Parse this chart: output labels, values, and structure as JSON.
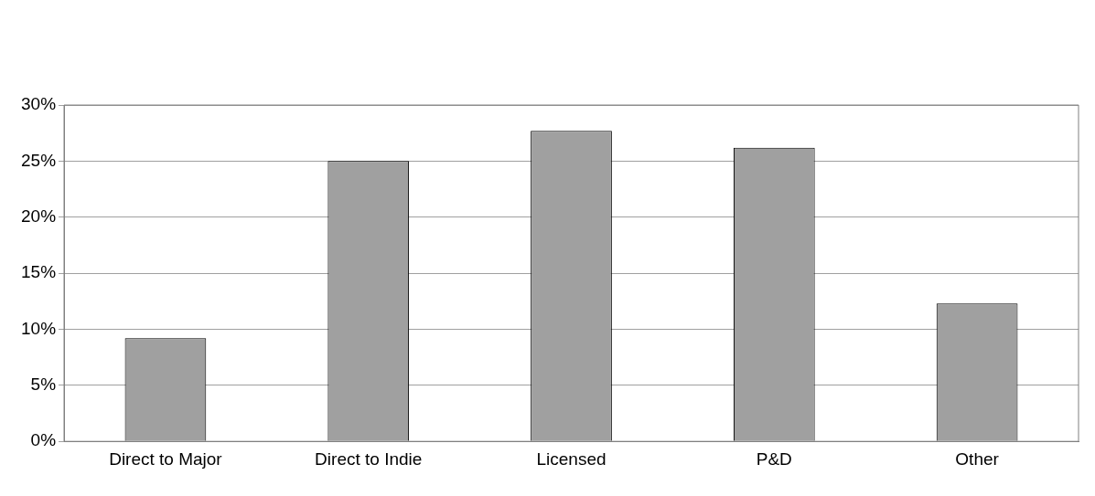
{
  "chart_data": {
    "type": "bar",
    "categories": [
      "Direct to Major",
      "Direct to Indie",
      "Licensed",
      "P&D",
      "Other"
    ],
    "values": [
      9.2,
      25,
      27.7,
      26.2,
      12.3
    ],
    "color": "#a0a0a0",
    "ylim": [
      0,
      30
    ],
    "yticks": [
      {
        "value": 0,
        "label": "0%"
      },
      {
        "value": 5,
        "label": "5%"
      },
      {
        "value": 10,
        "label": "10%"
      },
      {
        "value": 15,
        "label": "15%"
      },
      {
        "value": 20,
        "label": "20%"
      },
      {
        "value": 25,
        "label": "25%"
      },
      {
        "value": 30,
        "label": "30%"
      }
    ],
    "grid": "y"
  }
}
